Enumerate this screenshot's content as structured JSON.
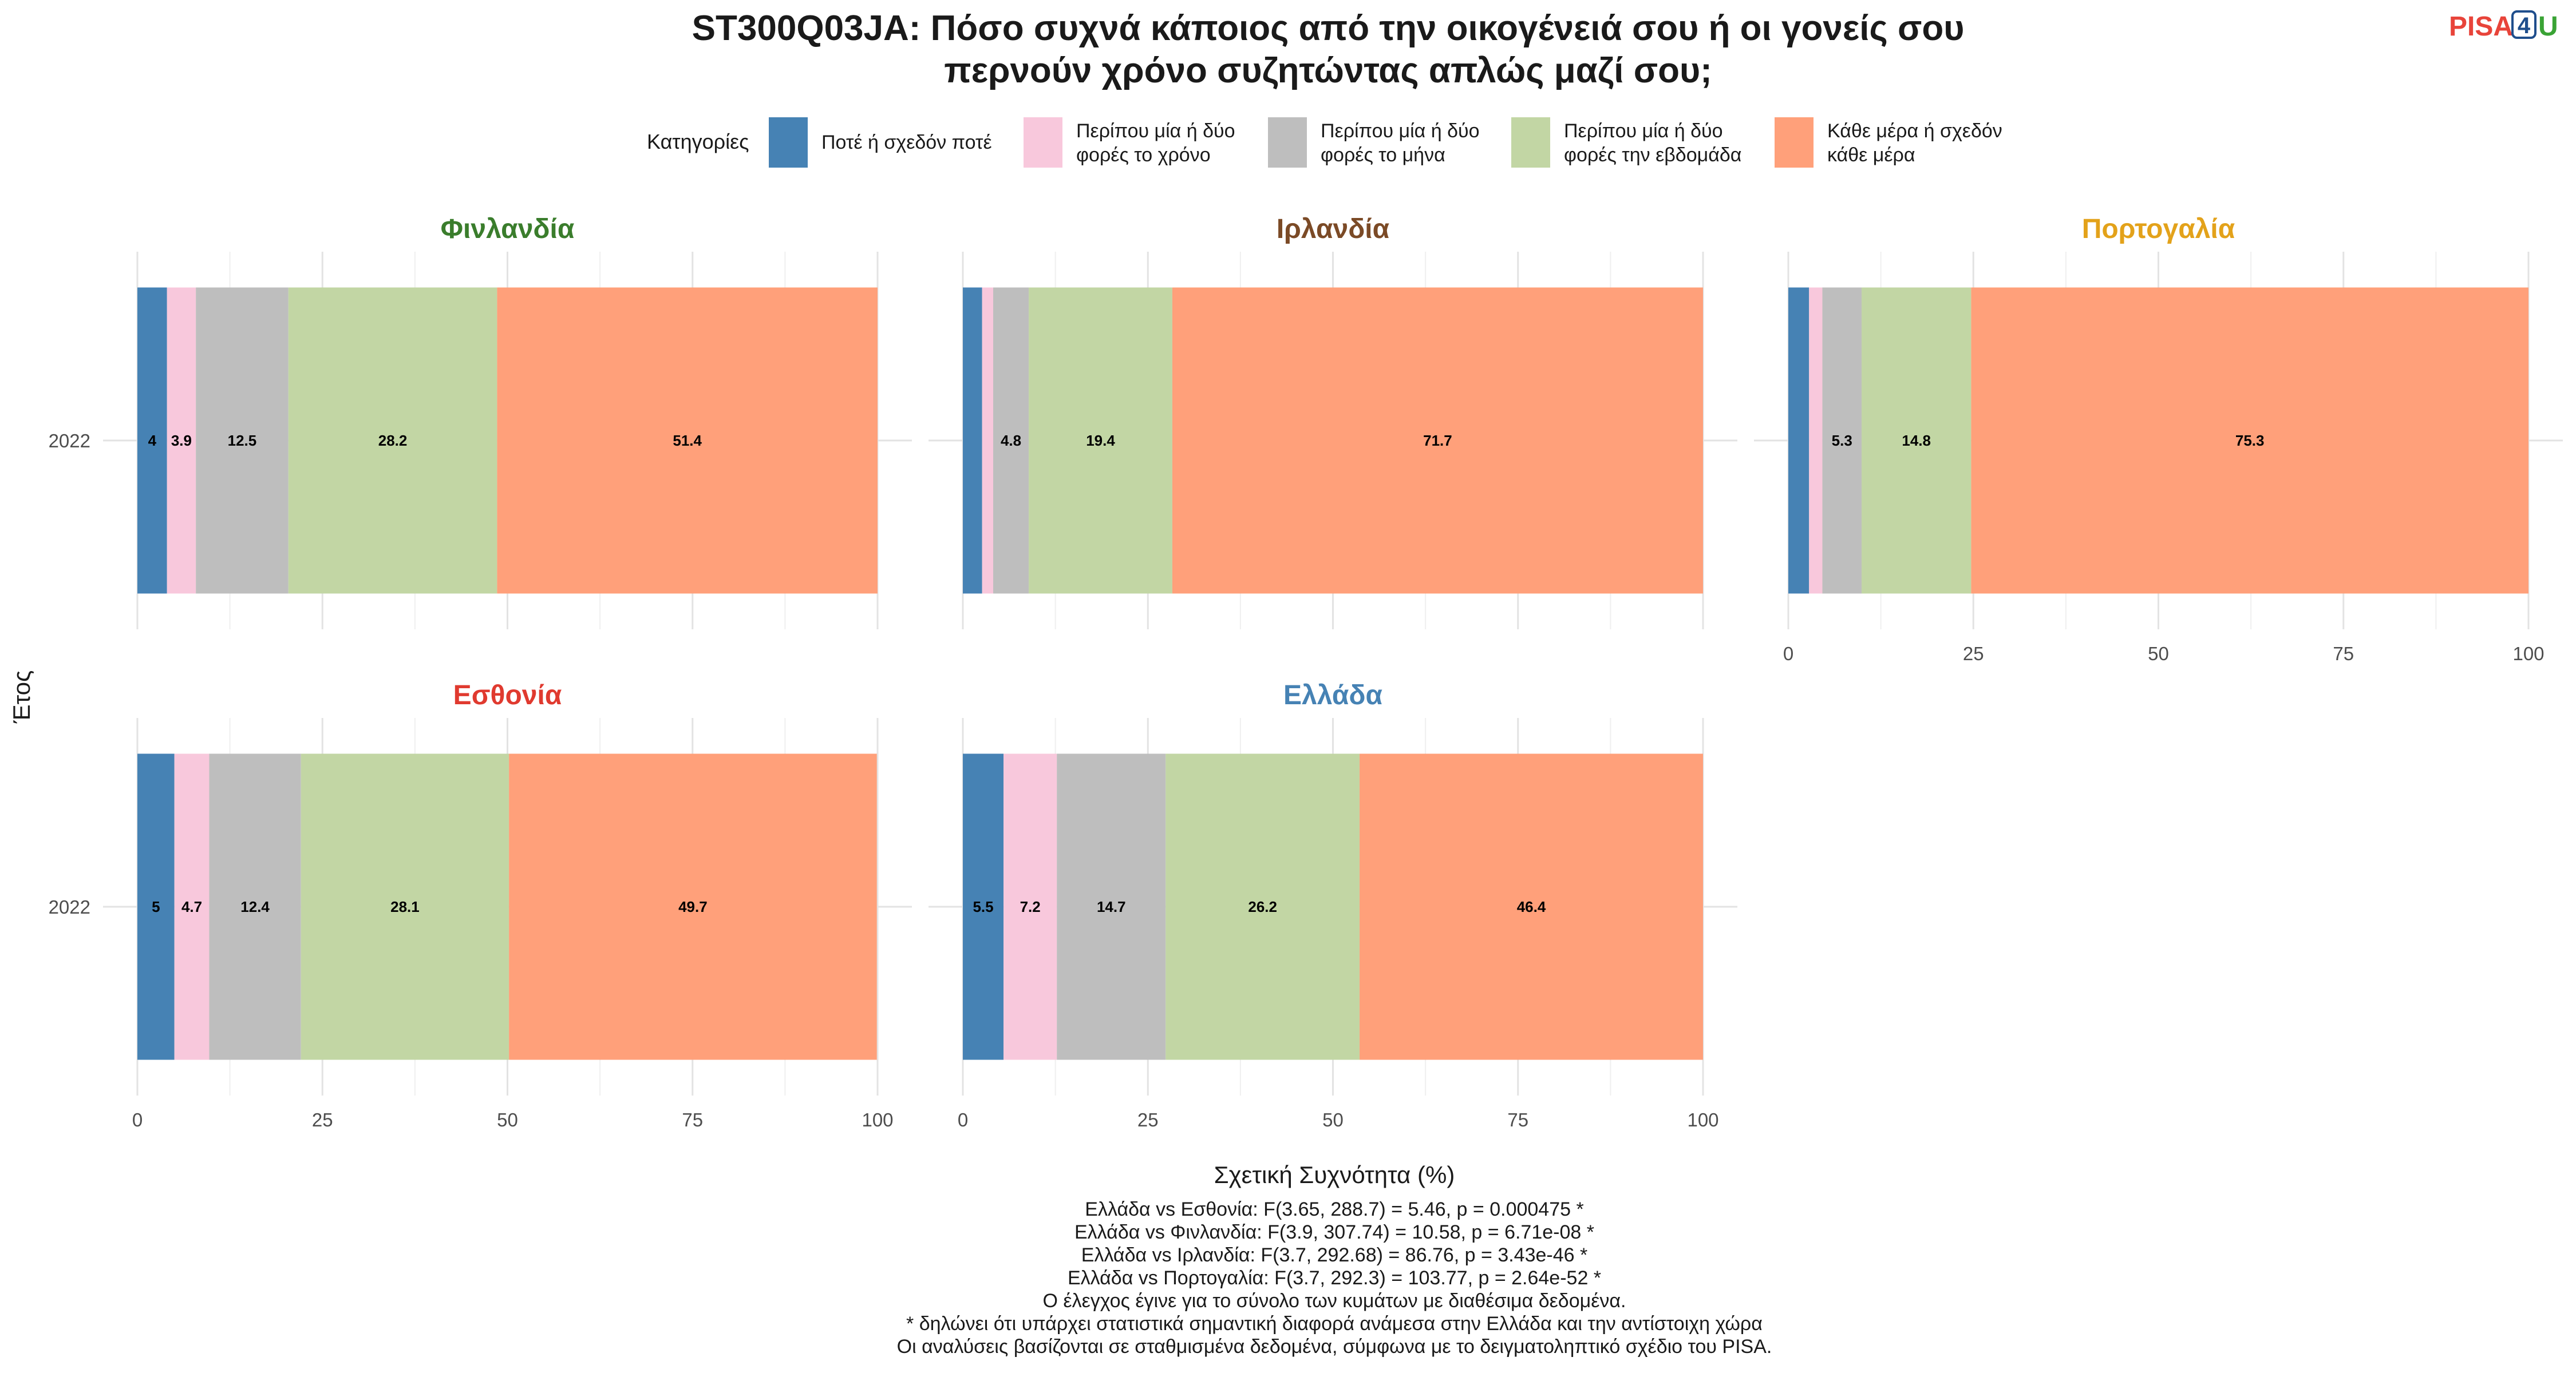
{
  "title_lines": [
    "ST300Q03JA: Πόσο συχνά κάποιος από την οικογένειά σου ή οι γονείς σου",
    "περνούν χρόνο συζητώντας απλώς μαζί σου;"
  ],
  "logo": {
    "part1": "PISA",
    "digit": "4",
    "part2": "U",
    "colors": {
      "part1": "#e8443a",
      "digit": "#1f4e8c",
      "part2": "#3aa335"
    }
  },
  "chart_data": {
    "type": "bar",
    "orientation": "horizontal-stacked",
    "legend_title": "Κατηγορίες",
    "legend_placement": "top",
    "categories": [
      {
        "label_lines": [
          "Ποτέ ή σχεδόν ποτέ"
        ],
        "color": "#4682b4"
      },
      {
        "label_lines": [
          "Περίπου μία ή δύο",
          "φορές το χρόνο"
        ],
        "color": "#f8c8dc"
      },
      {
        "label_lines": [
          "Περίπου μία ή δύο",
          "φορές το μήνα"
        ],
        "color": "#bebebe"
      },
      {
        "label_lines": [
          "Περίπου μία ή δύο",
          "φορές την εβδομάδα"
        ],
        "color": "#c2d6a4"
      },
      {
        "label_lines": [
          "Κάθε μέρα ή σχεδόν",
          "κάθε μέρα"
        ],
        "color": "#ffa07a"
      }
    ],
    "xlabel": "Σχετική Συχνότητα (%)",
    "ylabel": "Έτος",
    "xlim": [
      0,
      100
    ],
    "xticks": [
      0,
      25,
      50,
      75,
      100
    ],
    "grid": true,
    "panels": [
      {
        "name": "Φινλανδία",
        "color": "#3a7d2c",
        "year": "2022",
        "values": [
          4.0,
          3.9,
          12.5,
          28.2,
          51.4
        ],
        "labels": [
          "4",
          "3.9",
          "12.5",
          "28.2",
          "51.4"
        ]
      },
      {
        "name": "Ιρλανδία",
        "color": "#7b4a26",
        "year": "2022",
        "values": [
          2.6,
          1.5,
          4.8,
          19.4,
          71.7
        ],
        "labels": [
          "",
          "",
          "4.8",
          "19.4",
          "71.7"
        ]
      },
      {
        "name": "Πορτογαλία",
        "color": "#e3a21a",
        "year": "2022",
        "values": [
          2.8,
          1.8,
          5.3,
          14.8,
          75.3
        ],
        "labels": [
          "",
          "",
          "5.3",
          "14.8",
          "75.3"
        ]
      },
      {
        "name": "Εσθονία",
        "color": "#e03a2f",
        "year": "2022",
        "values": [
          5.0,
          4.7,
          12.4,
          28.1,
          49.7
        ],
        "labels": [
          "5",
          "4.7",
          "12.4",
          "28.1",
          "49.7"
        ]
      },
      {
        "name": "Ελλάδα",
        "color": "#4682b4",
        "year": "2022",
        "values": [
          5.5,
          7.2,
          14.7,
          26.2,
          46.4
        ],
        "labels": [
          "5.5",
          "7.2",
          "14.7",
          "26.2",
          "46.4"
        ]
      }
    ]
  },
  "caption_lines": [
    "Ελλάδα vs Εσθονία: F(3.65, 288.7) = 5.46, p = 0.000475 *",
    "Ελλάδα vs Φινλανδία: F(3.9, 307.74) = 10.58, p = 6.71e-08 *",
    "Ελλάδα vs Ιρλανδία: F(3.7, 292.68) = 86.76, p = 3.43e-46 *",
    "Ελλάδα vs Πορτογαλία: F(3.7, 292.3) = 103.77, p = 2.64e-52 *",
    "Ο έλεγχος έγινε για το σύνολο των κυμάτων με διαθέσιμα δεδομένα.",
    "* δηλώνει ότι υπάρχει στατιστικά σημαντική διαφορά ανάμεσα στην Ελλάδα και την αντίστοιχη χώρα",
    "Οι αναλύσεις βασίζονται σε σταθμισμένα δεδομένα, σύμφωνα με το δειγματοληπτικό σχέδιο του PISA."
  ]
}
